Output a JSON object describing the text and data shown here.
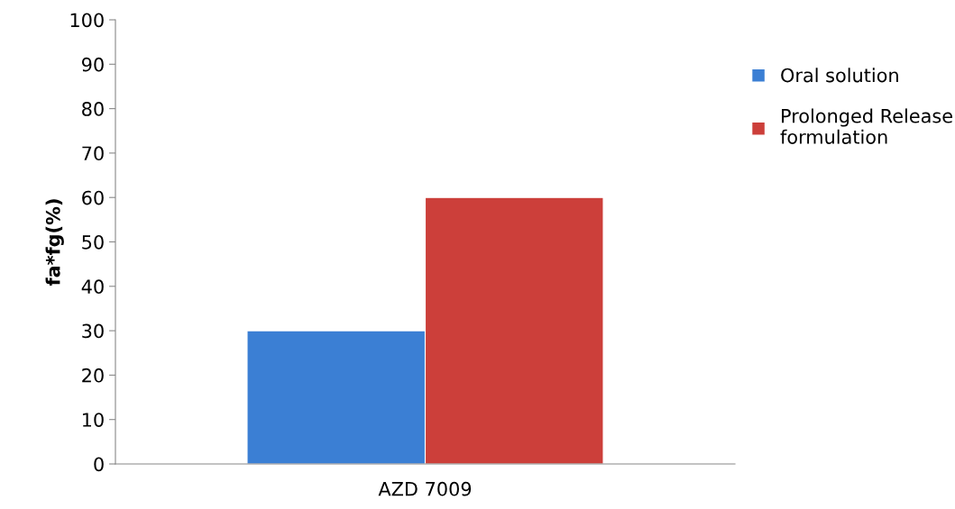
{
  "chart_data": {
    "type": "bar",
    "ylabel": "fa*fg(%)",
    "categories": [
      "AZD 7009"
    ],
    "series": [
      {
        "name": "Oral solution",
        "color": "#3b7fd4",
        "values": [
          30
        ]
      },
      {
        "name": "Prolonged Release\nformulation",
        "color": "#cc3f3a",
        "values": [
          60
        ]
      }
    ],
    "ylim": [
      0,
      100
    ],
    "yticks": [
      0,
      10,
      20,
      30,
      40,
      50,
      60,
      70,
      80,
      90,
      100
    ],
    "grid": false,
    "legend": "right"
  }
}
